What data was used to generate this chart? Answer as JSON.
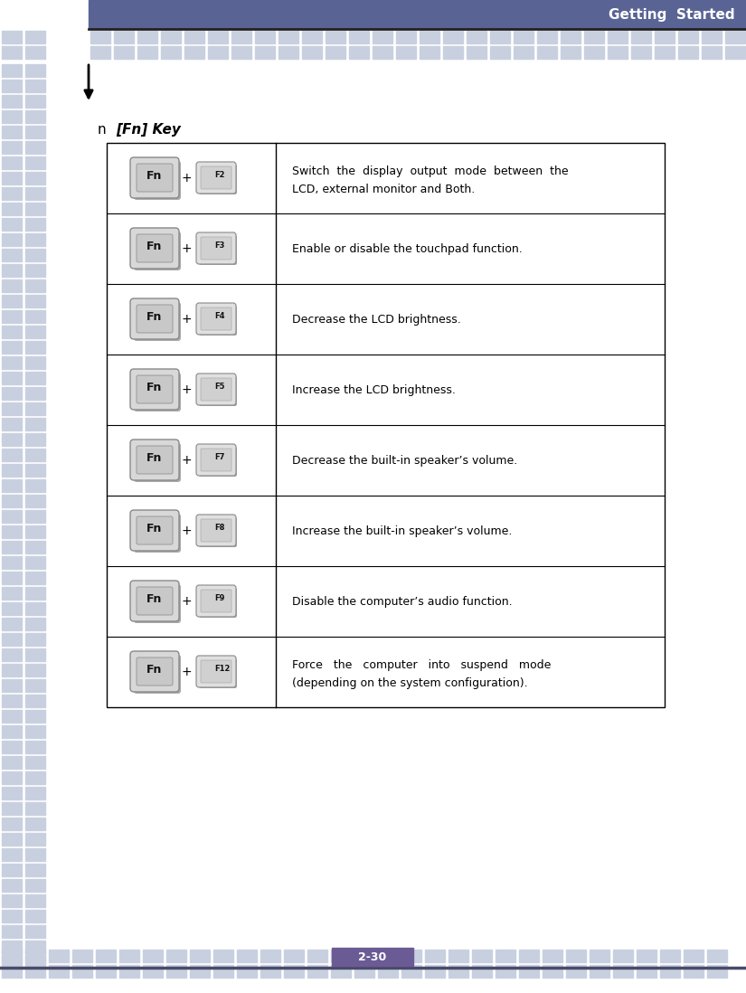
{
  "title": "Getting  Started",
  "title_bg": "#5a6494",
  "title_text_color": "#ffffff",
  "page_num": "2-30",
  "page_num_bg": "#6b5b95",
  "page_num_text_color": "#ffffff",
  "tile_color_light": "#c8d0e0",
  "tile_color_dark": "#b0b8cc",
  "section_marker": "n",
  "section_title": "[Fn] Key",
  "bg_color": "#ffffff",
  "table_border_color": "#000000",
  "rows": [
    {
      "key2": "F2",
      "desc_line1": "Switch  the  display  output  mode  between  the",
      "desc_line2": "LCD, external monitor and Both."
    },
    {
      "key2": "F3",
      "desc_line1": "Enable or disable the touchpad function.",
      "desc_line2": ""
    },
    {
      "key2": "F4",
      "desc_line1": "Decrease the LCD brightness.",
      "desc_line2": ""
    },
    {
      "key2": "F5",
      "desc_line1": "Increase the LCD brightness.",
      "desc_line2": ""
    },
    {
      "key2": "F7",
      "desc_line1": "Decrease the built-in speaker’s volume.",
      "desc_line2": ""
    },
    {
      "key2": "F8",
      "desc_line1": "Increase the built-in speaker’s volume.",
      "desc_line2": ""
    },
    {
      "key2": "F9",
      "desc_line1": "Disable the computer’s audio function.",
      "desc_line2": ""
    },
    {
      "key2": "F12",
      "desc_line1": "Force   the   computer   into   suspend   mode",
      "desc_line2": "(depending on the system configuration)."
    }
  ]
}
